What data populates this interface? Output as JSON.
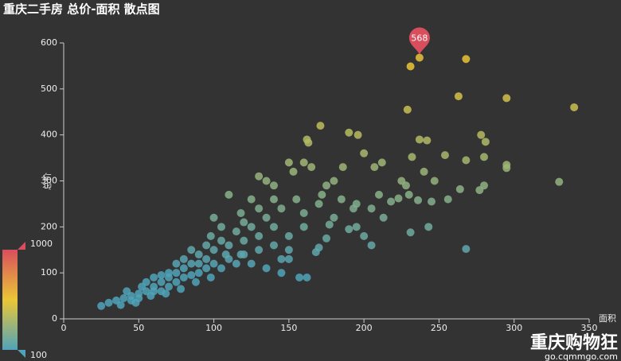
{
  "chart_data": {
    "type": "scatter",
    "title": "重庆二手房 总价-面积 散点图",
    "x_label": "面积",
    "y_label": "总价",
    "xlim": [
      0,
      350
    ],
    "ylim": [
      0,
      600
    ],
    "xticks": [
      0,
      50,
      100,
      150,
      200,
      250,
      300,
      350
    ],
    "yticks": [
      0,
      100,
      200,
      300,
      400,
      500,
      600
    ],
    "x": [
      231,
      237,
      268,
      263,
      295,
      340,
      229,
      171,
      190,
      196,
      237,
      242,
      278,
      281,
      163,
      162,
      295,
      295,
      330,
      280,
      277,
      264,
      268,
      280,
      232,
      254,
      240,
      247,
      228,
      236,
      245,
      256,
      231,
      243,
      268,
      223,
      210,
      200,
      212,
      207,
      186,
      180,
      175,
      172,
      185,
      195,
      160,
      165,
      180,
      193,
      205,
      218,
      230,
      225,
      213,
      195,
      200,
      205,
      190,
      177,
      170,
      175,
      168,
      145,
      150,
      162,
      157,
      150,
      153,
      140,
      130,
      135,
      125,
      110,
      118,
      100,
      98,
      105,
      95,
      90,
      85,
      80,
      75,
      70,
      65,
      60,
      55,
      50,
      45,
      40,
      35,
      30,
      25,
      60,
      70,
      80,
      90,
      100,
      110,
      120,
      130,
      100,
      110,
      120,
      130,
      140,
      115,
      125,
      135,
      145,
      155,
      90,
      80,
      70,
      60,
      50,
      45,
      55,
      65,
      75,
      85,
      95,
      105,
      115,
      125,
      135,
      145,
      150,
      160,
      140,
      130,
      120,
      105,
      95,
      85,
      75,
      65,
      42,
      52,
      150,
      160,
      170,
      140,
      118,
      108,
      98,
      88,
      78,
      68,
      58,
      48,
      38
    ],
    "values": [
      549,
      568,
      565,
      484,
      480,
      460,
      455,
      420,
      405,
      400,
      390,
      388,
      400,
      385,
      383,
      390,
      335,
      328,
      298,
      290,
      280,
      282,
      345,
      352,
      352,
      356,
      320,
      300,
      290,
      258,
      255,
      260,
      188,
      200,
      152,
      262,
      270,
      360,
      340,
      330,
      330,
      300,
      290,
      270,
      260,
      250,
      340,
      330,
      220,
      240,
      240,
      255,
      270,
      300,
      220,
      200,
      180,
      160,
      195,
      205,
      155,
      175,
      145,
      100,
      130,
      90,
      90,
      340,
      320,
      290,
      310,
      300,
      260,
      270,
      230,
      220,
      180,
      200,
      160,
      140,
      120,
      110,
      100,
      90,
      80,
      70,
      60,
      55,
      50,
      45,
      40,
      35,
      28,
      90,
      100,
      130,
      120,
      150,
      160,
      170,
      180,
      120,
      130,
      140,
      150,
      160,
      190,
      200,
      220,
      240,
      260,
      100,
      90,
      70,
      60,
      45,
      40,
      80,
      95,
      80,
      95,
      110,
      110,
      120,
      120,
      110,
      130,
      150,
      200,
      200,
      240,
      210,
      170,
      130,
      150,
      120,
      60,
      60,
      70,
      180,
      230,
      250,
      260,
      140,
      140,
      90,
      80,
      65,
      55,
      50,
      35,
      30
    ],
    "mark_point": {
      "x": 237,
      "value": 568,
      "color": "#d94e5d"
    },
    "visual_map": {
      "min": 100,
      "max": 1000,
      "colors": [
        "#50a3ba",
        "#eac736",
        "#d94e5d"
      ]
    },
    "watermark": {
      "name": "重庆购物狂",
      "url": "go.cqmmgo.com"
    }
  }
}
